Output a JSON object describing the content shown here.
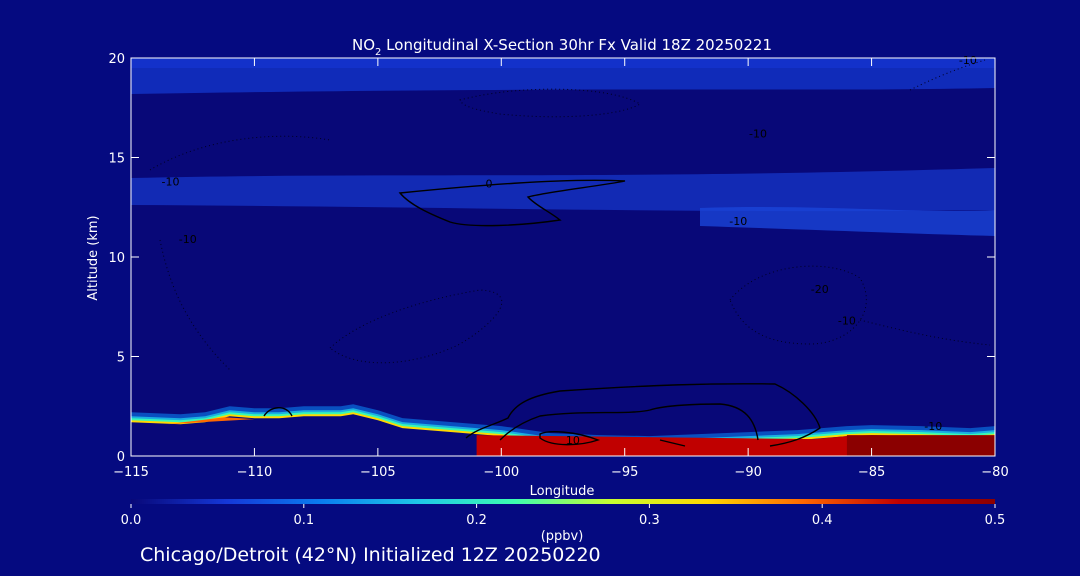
{
  "chart_data": {
    "type": "heatmap",
    "title": "NO2 Longitudinal X-Section 30hr  Fx Valid 18Z 20250221",
    "title_parts": {
      "pre": "NO",
      "sub": "2",
      "post": " Longitudinal X-Section 30hr  Fx Valid 18Z 20250221"
    },
    "xlabel": "Longitude",
    "ylabel": "Altitude (km)",
    "xlim": [
      -115,
      -80
    ],
    "ylim": [
      0,
      20
    ],
    "x_ticks": [
      -115,
      -110,
      -105,
      -100,
      -95,
      -90,
      -85,
      -80
    ],
    "x_tick_labels": [
      "−115",
      "−110",
      "−105",
      "−100",
      "−95",
      "−90",
      "−85",
      "−80"
    ],
    "y_ticks": [
      0,
      5,
      10,
      15,
      20
    ],
    "y_tick_labels": [
      "0",
      "5",
      "10",
      "15",
      "20"
    ],
    "colorbar": {
      "label": "(ppbv)",
      "range": [
        0.0,
        0.5
      ],
      "ticks": [
        0.0,
        0.1,
        0.2,
        0.3,
        0.4,
        0.5
      ],
      "tick_labels": [
        "0.0",
        "0.1",
        "0.2",
        "0.3",
        "0.4",
        "0.5"
      ],
      "colors": [
        "#080878",
        "#1538d8",
        "#0a7ef0",
        "#1fc8e8",
        "#3dffb0",
        "#c8ff30",
        "#ffd800",
        "#ff6800",
        "#c00000",
        "#8b0000"
      ]
    },
    "terrain_km": [
      [
        -115,
        1.7
      ],
      [
        -113,
        1.6
      ],
      [
        -112,
        1.7
      ],
      [
        -111,
        2.0
      ],
      [
        -110,
        1.9
      ],
      [
        -109,
        1.9
      ],
      [
        -108,
        2.0
      ],
      [
        -106.5,
        2.0
      ],
      [
        -106,
        2.1
      ],
      [
        -105,
        1.8
      ],
      [
        -104,
        1.4
      ],
      [
        -102,
        1.2
      ],
      [
        -100,
        1.0
      ],
      [
        -98,
        0.65
      ],
      [
        -96,
        0.55
      ],
      [
        -94,
        0.5
      ],
      [
        -92,
        0.6
      ],
      [
        -90,
        0.7
      ],
      [
        -88,
        0.8
      ],
      [
        -87,
        0.9
      ],
      [
        -86,
        1.0
      ],
      [
        -85,
        1.05
      ],
      [
        -83,
        1.0
      ],
      [
        -81,
        0.9
      ],
      [
        -80,
        1.0
      ]
    ],
    "contour_labels": [
      {
        "text": "0",
        "lon": -100.5,
        "alt": 13.5
      },
      {
        "text": "-10",
        "lon": -89.6,
        "alt": 16.0
      },
      {
        "text": "-10",
        "lon": -90.4,
        "alt": 11.6
      },
      {
        "text": "-10",
        "lon": -113.4,
        "alt": 13.6
      },
      {
        "text": "-10",
        "lon": -112.7,
        "alt": 10.7
      },
      {
        "text": "-20",
        "lon": -87.1,
        "alt": 8.2
      },
      {
        "text": "-10",
        "lon": -86.0,
        "alt": 6.6
      },
      {
        "text": "-10",
        "lon": -82.5,
        "alt": 1.3
      },
      {
        "text": "10",
        "lon": -97.1,
        "alt": 0.6
      },
      {
        "text": "-10",
        "lon": -81.1,
        "alt": 19.7
      }
    ]
  },
  "footer": {
    "caption": "Chicago/Detroit (42°N) Initialized 12Z 20250220"
  }
}
